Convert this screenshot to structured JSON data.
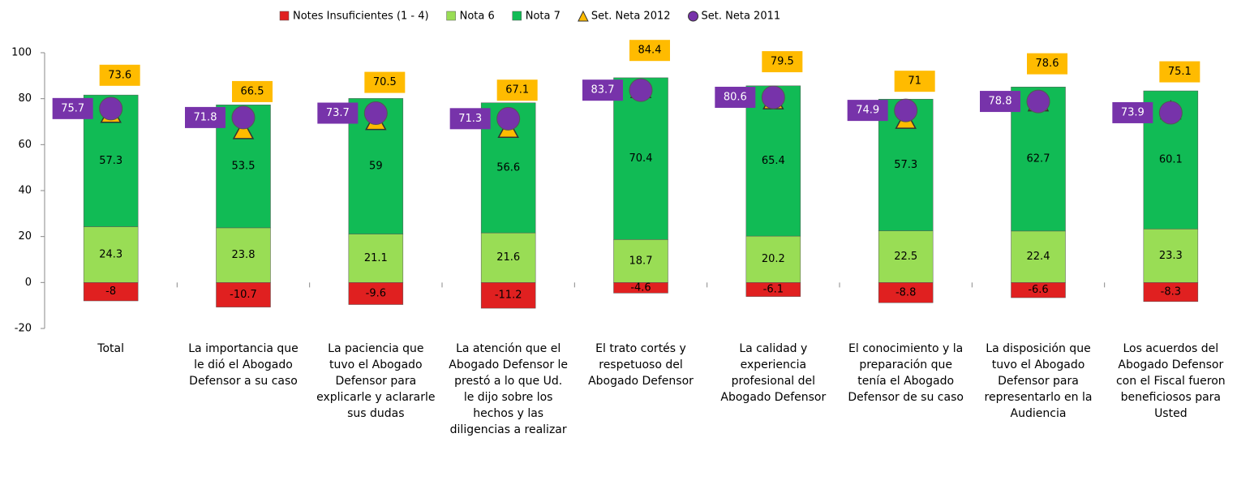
{
  "chart_data": {
    "type": "stacked-bar",
    "categories": [
      "Total",
      "La importancia que le dió el Abogado Defensor a su caso",
      "La paciencia que tuvo el Abogado Defensor para explicarle y aclararle sus dudas",
      "La atención que el Abogado Defensor le prestó a lo que Ud. le dijo sobre los hechos y las diligencias a realizar",
      "El trato cortés y respetuoso del Abogado Defensor",
      "La calidad y experiencia profesional del Abogado Defensor",
      "El conocimiento y la preparación que tenía el Abogado Defensor de su caso",
      "La disposición que tuvo el Abogado Defensor para representarlo en la Audiencia",
      "Los acuerdos del Abogado Defensor con el Fiscal fueron beneficiosos para Usted"
    ],
    "series": [
      {
        "name": "Notes Insuficientes (1 - 4)",
        "color": "#e02020",
        "kind": "bar",
        "values": [
          -8,
          -10.7,
          -9.6,
          -11.2,
          -4.6,
          -6.1,
          -8.8,
          -6.6,
          -8.3
        ]
      },
      {
        "name": "Nota 6",
        "color": "#99dd55",
        "kind": "bar",
        "values": [
          24.3,
          23.8,
          21.1,
          21.6,
          18.7,
          20.2,
          22.5,
          22.4,
          23.3
        ]
      },
      {
        "name": "Nota 7",
        "color": "#11bb55",
        "kind": "bar",
        "values": [
          57.3,
          53.5,
          59,
          56.6,
          70.4,
          65.4,
          57.3,
          62.7,
          60.1
        ]
      },
      {
        "name": "Set. Neta 2012",
        "color": "#ffbb00",
        "kind": "triangle",
        "values": [
          73.6,
          66.5,
          70.5,
          67.1,
          84.4,
          79.5,
          71,
          78.6,
          75.1
        ]
      },
      {
        "name": "Set. Neta 2011",
        "color": "#7733aa",
        "kind": "circle",
        "values": [
          75.7,
          71.8,
          73.7,
          71.3,
          83.7,
          80.6,
          74.9,
          78.8,
          73.9
        ]
      }
    ],
    "ylim": [
      -20,
      100
    ],
    "yticks": [
      -20,
      0,
      20,
      40,
      60,
      80,
      100
    ],
    "legend": "top"
  }
}
